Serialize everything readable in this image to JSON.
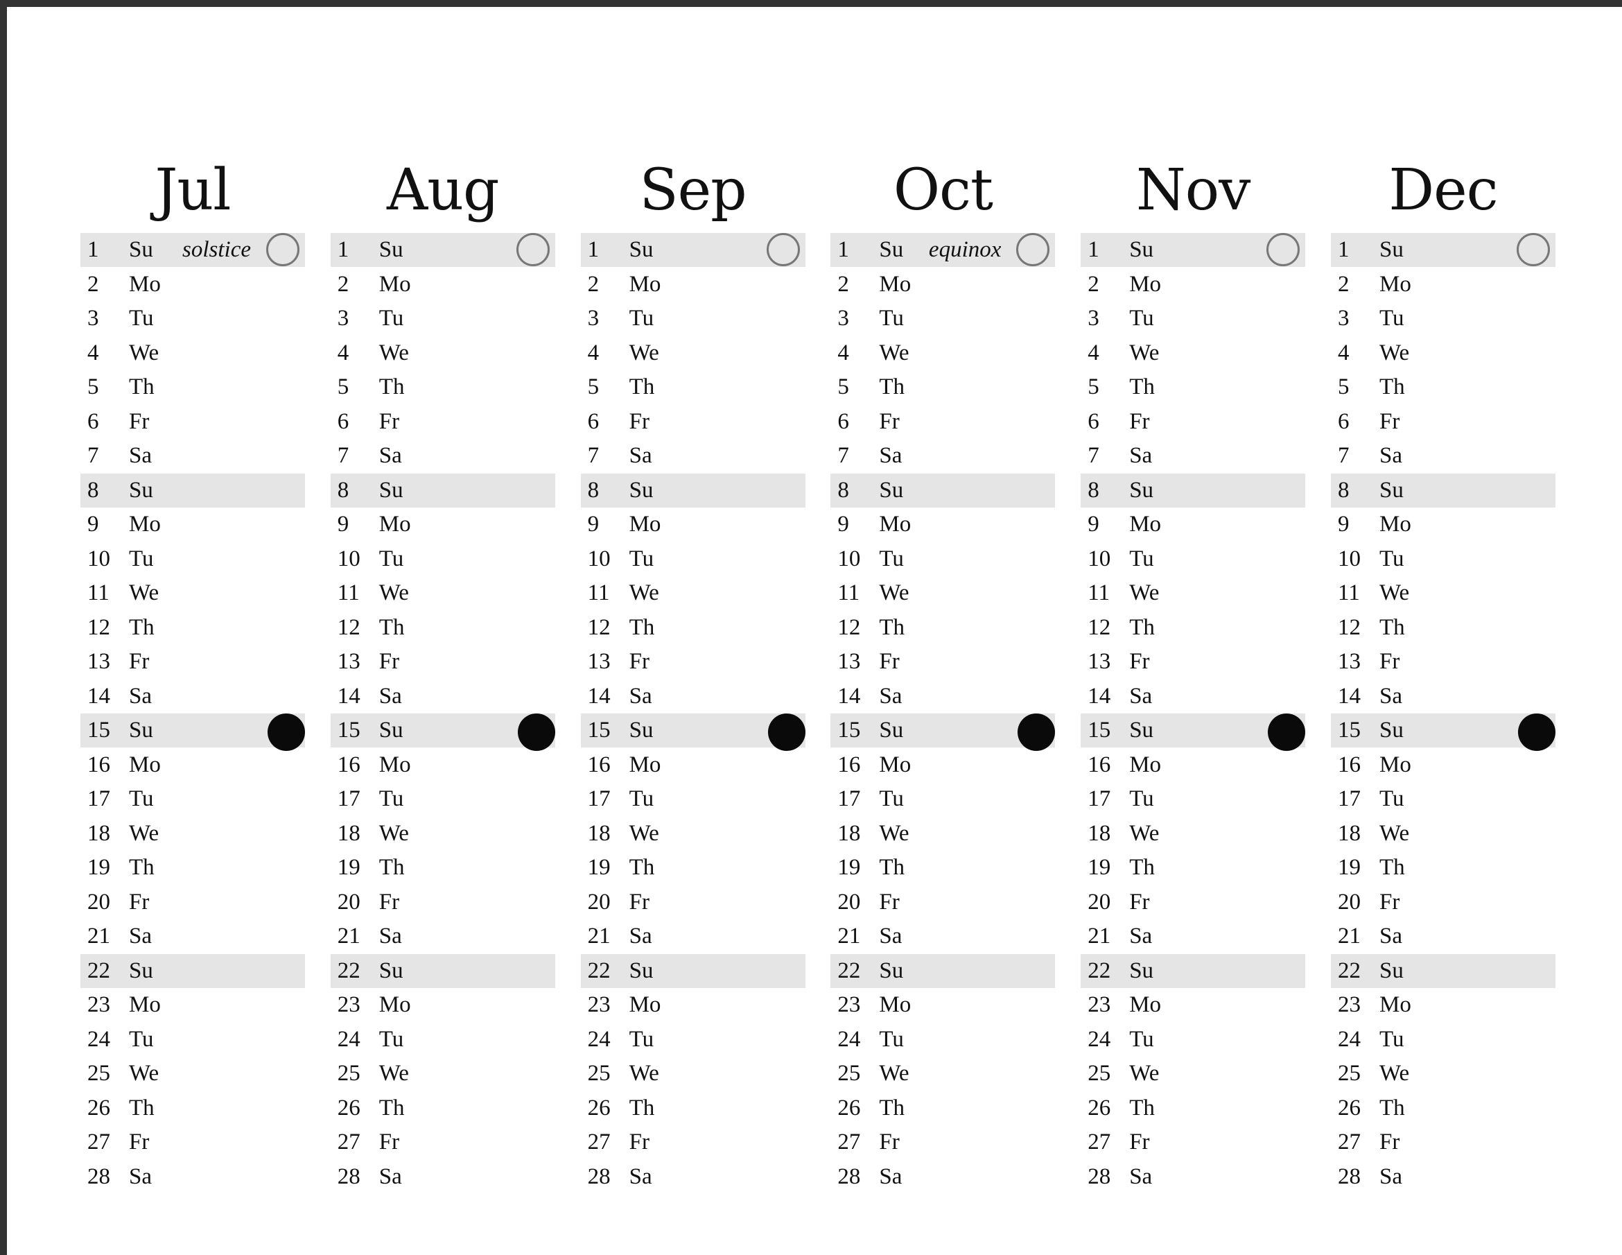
{
  "calendar": {
    "weekdays": [
      "Su",
      "Mo",
      "Tu",
      "We",
      "Th",
      "Fr",
      "Sa"
    ],
    "days_shown": 28,
    "shaded_weekday": "Su",
    "colors": {
      "page": "#ffffff",
      "frame": "#333333",
      "shade": "#e5e5e5",
      "text": "#111111",
      "full_moon_outline": "#777777",
      "new_moon_fill": "#0a0a0a"
    },
    "months": [
      {
        "name": "Jul",
        "notes": {
          "1": "solstice"
        },
        "full_moon_day": 1,
        "new_moon_day": 15
      },
      {
        "name": "Aug",
        "notes": {},
        "full_moon_day": 1,
        "new_moon_day": 15
      },
      {
        "name": "Sep",
        "notes": {},
        "full_moon_day": 1,
        "new_moon_day": 15
      },
      {
        "name": "Oct",
        "notes": {
          "1": "equinox"
        },
        "full_moon_day": 1,
        "new_moon_day": 15
      },
      {
        "name": "Nov",
        "notes": {},
        "full_moon_day": 1,
        "new_moon_day": 15
      },
      {
        "name": "Dec",
        "notes": {},
        "full_moon_day": 1,
        "new_moon_day": 15
      }
    ]
  }
}
